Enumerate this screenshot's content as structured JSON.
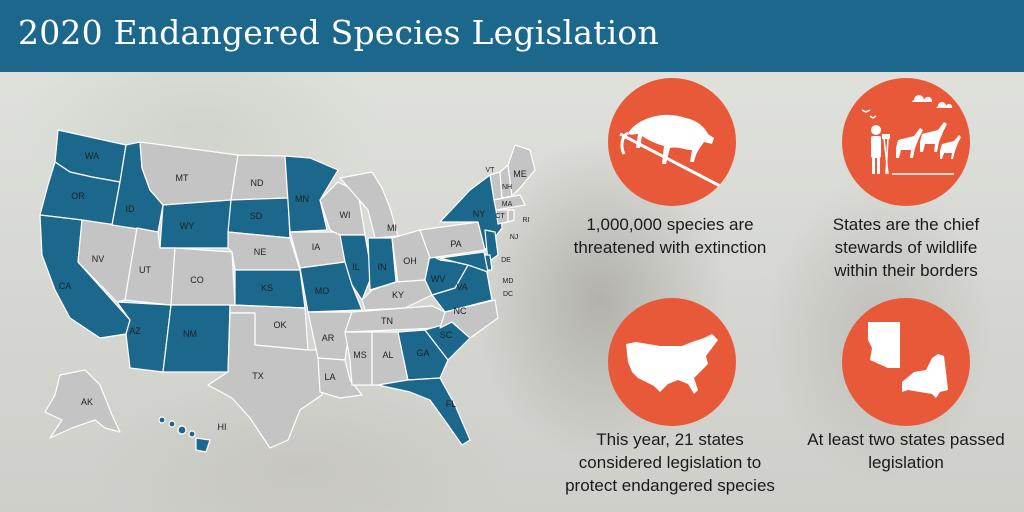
{
  "title": "2020 Endangered Species Legislation",
  "colors": {
    "header": "#1c678c",
    "considered": "#1c678c",
    "not_considered": "#c4c4c4",
    "accent": "#e8593a"
  },
  "map": {
    "labels": {
      "WA": "WA",
      "OR": "OR",
      "CA": "CA",
      "ID": "ID",
      "NV": "NV",
      "MT": "MT",
      "WY": "WY",
      "UT": "UT",
      "AZ": "AZ",
      "CO": "CO",
      "NM": "NM",
      "ND": "ND",
      "SD": "SD",
      "NE": "NE",
      "KS": "KS",
      "OK": "OK",
      "TX": "TX",
      "MN": "MN",
      "IA": "IA",
      "MO": "MO",
      "AR": "AR",
      "LA": "LA",
      "WI": "WI",
      "IL": "IL",
      "MS": "MS",
      "MI": "MI",
      "IN": "IN",
      "KY": "KY",
      "TN": "TN",
      "AL": "AL",
      "OH": "OH",
      "GA": "GA",
      "FL": "FL",
      "SC": "SC",
      "NC": "NC",
      "VA": "VA",
      "WV": "WV",
      "PA": "PA",
      "NY": "NY",
      "VT": "VT",
      "NH": "NH",
      "ME": "ME",
      "MA": "MA",
      "CT": "CT",
      "RI": "RI",
      "NJ": "NJ",
      "DE": "DE",
      "MD": "MD",
      "DC": "DC",
      "AK": "AK",
      "HI": "HI"
    }
  },
  "stats": [
    {
      "icon": "cougar-icon",
      "lines": [
        "1,000,000 species are",
        "threatened with extinction"
      ]
    },
    {
      "icon": "state-wildlife-steward-icon",
      "lines": [
        "States are the chief",
        "stewards of wildlife",
        "within their borders"
      ]
    },
    {
      "icon": "usa-map-icon",
      "lines": [
        "This year, 21 states",
        "considered legislation to",
        "protect endangered species"
      ]
    },
    {
      "icon": "arizona-new-york-icon",
      "lines": [
        "At least two states passed",
        "legislation"
      ]
    }
  ]
}
